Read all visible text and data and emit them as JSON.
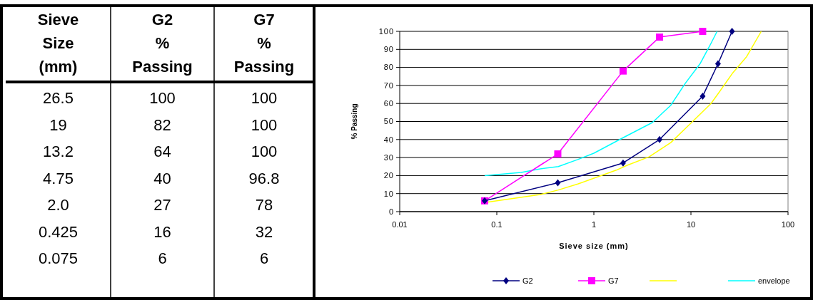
{
  "chart_data": [
    {
      "type": "other",
      "xlabel": "Sieve Size (mm)",
      "categories": [
        "26.5",
        "19",
        "13.2",
        "4.75",
        "2.0",
        "0.425",
        "0.075"
      ],
      "data_labels": true,
      "series": [
        {
          "name": "G2 % Passing",
          "values": [
            100,
            82,
            64,
            40,
            27,
            16,
            6
          ]
        },
        {
          "name": "G7 % Passing",
          "values": [
            100,
            100,
            100,
            96.8,
            78,
            32,
            6
          ]
        }
      ]
    },
    {
      "type": "line",
      "xlabel": "Sieve size (mm)",
      "ylabel": "% Passing",
      "log": "x",
      "xlim": [
        0.01,
        100
      ],
      "xticks": [
        0.01,
        0.1,
        1,
        10,
        100
      ],
      "ylim": [
        0,
        100
      ],
      "yticks": [
        0,
        10,
        20,
        30,
        40,
        50,
        60,
        70,
        80,
        90,
        100
      ],
      "grid": "y",
      "legend": "bottom",
      "line_style": "solid",
      "series": [
        {
          "name": "G2",
          "color": "#000080",
          "marker": "diamond",
          "x": [
            26.5,
            19,
            13.2,
            4.75,
            2.0,
            0.425,
            0.075
          ],
          "values": [
            100,
            82,
            64,
            40,
            27,
            16,
            6
          ]
        },
        {
          "name": "G7",
          "color": "#ff00ff",
          "marker": "square",
          "x": [
            13.2,
            4.75,
            2.0,
            0.425,
            0.075
          ],
          "values": [
            100,
            96.8,
            78,
            32,
            6
          ]
        },
        {
          "color": "#ffff00",
          "marker": "none",
          "x": [
            0.075,
            0.28,
            0.43,
            0.69,
            1.7,
            2.2,
            3.7,
            6.2,
            10.4,
            16.1,
            19.4,
            27,
            37.5,
            53
          ],
          "values": [
            5,
            9.5,
            12,
            15.4,
            23,
            25.7,
            30.4,
            38.3,
            50,
            60,
            66,
            77,
            86,
            100
          ]
        },
        {
          "name": "envelope",
          "color": "#00ffff",
          "marker": "none",
          "x": [
            0.075,
            0.178,
            0.28,
            0.43,
            0.69,
            1,
            2,
            4,
            6.2,
            8.7,
            12.4,
            15.8,
            18.6
          ],
          "values": [
            20,
            21.7,
            23.7,
            25,
            29,
            32.4,
            41,
            49.4,
            59,
            71,
            82,
            92.5,
            100
          ]
        }
      ]
    }
  ]
}
